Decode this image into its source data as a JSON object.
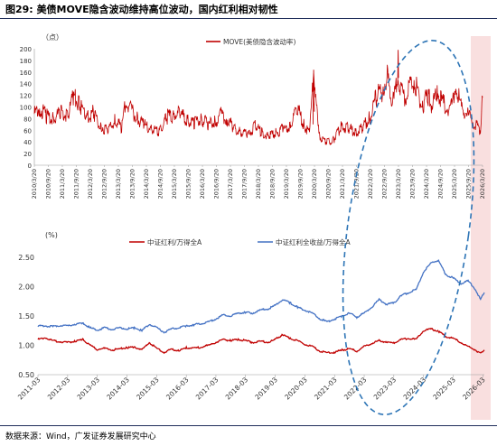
{
  "title": {
    "fig_no": "图29:",
    "text": "美债MOVE隐含波动维持高位波动，国内红利相对韧性"
  },
  "source": "数据来源：Wind，广发证券发展研究中心",
  "colors": {
    "red": "#c00000",
    "blue": "#4472c4",
    "ellipse": "#2e75b6",
    "shade": "#f8d7d7",
    "axis": "#999999",
    "rule": "#1f2d5a"
  },
  "chart_data": [
    {
      "type": "line",
      "unit_label": "（点）",
      "ylim": [
        0,
        200
      ],
      "yticks": [
        0,
        20,
        40,
        60,
        80,
        100,
        120,
        140,
        160,
        180,
        200
      ],
      "xlim": [
        "2010-03-20",
        "2026-03-20"
      ],
      "xticks": [
        "2010/3/20",
        "2010/9/20",
        "2011/3/20",
        "2011/9/20",
        "2012/3/20",
        "2012/9/20",
        "2013/3/20",
        "2013/9/20",
        "2014/3/20",
        "2014/9/20",
        "2015/3/20",
        "2015/9/20",
        "2016/3/20",
        "2016/9/20",
        "2017/3/20",
        "2017/9/20",
        "2018/3/20",
        "2018/9/20",
        "2019/3/20",
        "2019/9/20",
        "2020/3/20",
        "2020/9/20",
        "2021/3/20",
        "2021/9/20",
        "2022/3/20",
        "2022/9/20",
        "2023/3/20",
        "2023/9/20",
        "2024/3/20",
        "2024/9/20",
        "2025/3/20",
        "2025/9/20",
        "2026/3/20"
      ],
      "grid": false,
      "legend": "top-center",
      "series": [
        {
          "name": "MOVE(美债隐含波动率)",
          "color": "#c00000",
          "x": [
            "2010-03-20",
            "2010-06-01",
            "2010-09-01",
            "2010-12-01",
            "2011-03-01",
            "2011-06-01",
            "2011-08-15",
            "2011-11-01",
            "2012-02-01",
            "2012-05-01",
            "2012-08-01",
            "2012-11-01",
            "2013-02-01",
            "2013-05-01",
            "2013-06-25",
            "2013-09-01",
            "2013-12-01",
            "2014-03-01",
            "2014-06-01",
            "2014-09-01",
            "2014-12-01",
            "2015-03-01",
            "2015-06-01",
            "2015-09-01",
            "2015-12-01",
            "2016-03-01",
            "2016-06-01",
            "2016-09-01",
            "2016-11-20",
            "2017-02-01",
            "2017-05-01",
            "2017-08-01",
            "2017-11-01",
            "2018-02-10",
            "2018-05-01",
            "2018-08-01",
            "2018-11-01",
            "2019-02-01",
            "2019-05-01",
            "2019-08-15",
            "2019-11-01",
            "2020-01-15",
            "2020-03-09",
            "2020-03-25",
            "2020-06-01",
            "2020-09-01",
            "2020-12-01",
            "2021-03-01",
            "2021-06-01",
            "2021-09-01",
            "2021-12-01",
            "2022-03-01",
            "2022-06-15",
            "2022-09-01",
            "2022-10-20",
            "2022-12-01",
            "2023-01-15",
            "2023-03-15",
            "2023-05-01",
            "2023-07-01",
            "2023-08-15",
            "2023-10-20",
            "2023-12-01",
            "2024-02-01",
            "2024-04-15",
            "2024-06-01",
            "2024-08-05",
            "2024-10-01",
            "2024-12-01",
            "2025-02-01",
            "2025-04-08",
            "2025-06-01",
            "2025-08-01",
            "2025-10-01",
            "2025-12-01",
            "2026-01-20",
            "2026-02-20",
            "2026-03-10",
            "2026-03-20"
          ],
          "values": [
            88,
            98,
            84,
            78,
            92,
            85,
            118,
            102,
            85,
            90,
            68,
            58,
            76,
            65,
            112,
            95,
            78,
            70,
            62,
            58,
            82,
            85,
            90,
            76,
            72,
            80,
            70,
            74,
            88,
            80,
            64,
            58,
            52,
            68,
            56,
            50,
            56,
            62,
            66,
            98,
            70,
            55,
            164,
            118,
            48,
            40,
            45,
            66,
            64,
            56,
            64,
            80,
            124,
            130,
            158,
            120,
            110,
            150,
            122,
            118,
            132,
            150,
            118,
            106,
            118,
            102,
            126,
            112,
            98,
            96,
            138,
            104,
            92,
            84,
            72,
            66,
            60,
            98,
            116
          ]
        },
        {
          "name": "",
          "color": "#c00000",
          "x": [
            "2020-03-01",
            "2020-03-09",
            "2020-03-12",
            "2020-03-18",
            "2023-03-10",
            "2023-03-15",
            "2023-03-20"
          ],
          "values": [
            70,
            164,
            110,
            92,
            140,
            198,
            150
          ]
        }
      ]
    },
    {
      "type": "line",
      "unit_label": "(%)",
      "ylim": [
        0.5,
        2.5
      ],
      "yticks": [
        0.5,
        1.0,
        1.5,
        2.0,
        2.5
      ],
      "ytick_labels": [
        "0.50",
        "1.00",
        "1.50",
        "2.00",
        "2.50"
      ],
      "xlim": [
        "2011-03-01",
        "2026-03-20"
      ],
      "xticks": [
        "2011-03",
        "2012-03",
        "2013-03",
        "2014-03",
        "2015-03",
        "2016-03",
        "2017-03",
        "2018-03",
        "2019-03",
        "2020-03",
        "2021-03",
        "2022-03",
        "2023-03",
        "2024-03",
        "2025-03",
        "2026-03"
      ],
      "grid": false,
      "legend": "top-center",
      "series": [
        {
          "name": "中证红利/万得全A",
          "color": "#c00000",
          "x": [
            "2011-03-01",
            "2011-06-01",
            "2011-09-01",
            "2011-12-01",
            "2012-03-01",
            "2012-06-01",
            "2012-09-01",
            "2012-12-01",
            "2013-03-01",
            "2013-06-01",
            "2013-09-01",
            "2013-12-01",
            "2014-03-01",
            "2014-06-01",
            "2014-09-01",
            "2014-12-01",
            "2015-03-01",
            "2015-06-01",
            "2015-09-01",
            "2015-12-01",
            "2016-03-01",
            "2016-06-01",
            "2016-09-01",
            "2016-12-01",
            "2017-03-01",
            "2017-06-01",
            "2017-09-01",
            "2017-12-01",
            "2018-03-01",
            "2018-06-01",
            "2018-09-01",
            "2018-12-01",
            "2019-03-01",
            "2019-06-01",
            "2019-09-01",
            "2019-12-01",
            "2020-03-01",
            "2020-06-01",
            "2020-09-01",
            "2020-12-01",
            "2021-03-01",
            "2021-06-01",
            "2021-09-01",
            "2021-12-01",
            "2022-03-01",
            "2022-06-01",
            "2022-09-01",
            "2022-12-01",
            "2023-03-01",
            "2023-06-01",
            "2023-09-01",
            "2023-12-01",
            "2024-03-01",
            "2024-06-01",
            "2024-09-01",
            "2024-12-01",
            "2025-03-01",
            "2025-06-01",
            "2025-09-01",
            "2025-12-01",
            "2026-02-01",
            "2026-03-20"
          ],
          "values": [
            1.1,
            1.13,
            1.08,
            1.06,
            1.05,
            1.07,
            1.1,
            1.0,
            0.93,
            0.95,
            0.92,
            0.94,
            0.96,
            0.97,
            0.92,
            1.05,
            0.95,
            0.88,
            0.93,
            0.91,
            0.96,
            0.95,
            0.97,
            1.0,
            1.05,
            1.1,
            1.08,
            1.1,
            1.08,
            1.05,
            1.07,
            1.05,
            1.1,
            1.18,
            1.12,
            1.08,
            1.02,
            0.98,
            0.9,
            0.87,
            0.88,
            0.92,
            0.94,
            0.9,
            0.98,
            1.03,
            1.08,
            1.05,
            1.04,
            1.1,
            1.12,
            1.1,
            1.25,
            1.28,
            1.24,
            1.15,
            1.12,
            1.05,
            0.98,
            0.92,
            0.86,
            0.92
          ]
        },
        {
          "name": "中证红利全收益/万得全A",
          "color": "#4472c4",
          "x": [
            "2011-03-01",
            "2011-06-01",
            "2011-09-01",
            "2011-12-01",
            "2012-03-01",
            "2012-06-01",
            "2012-09-01",
            "2012-12-01",
            "2013-03-01",
            "2013-06-01",
            "2013-09-01",
            "2013-12-01",
            "2014-03-01",
            "2014-06-01",
            "2014-09-01",
            "2014-12-01",
            "2015-03-01",
            "2015-06-01",
            "2015-09-01",
            "2015-12-01",
            "2016-03-01",
            "2016-06-01",
            "2016-09-01",
            "2016-12-01",
            "2017-03-01",
            "2017-06-01",
            "2017-09-01",
            "2017-12-01",
            "2018-03-01",
            "2018-06-01",
            "2018-09-01",
            "2018-12-01",
            "2019-03-01",
            "2019-06-01",
            "2019-09-01",
            "2019-12-01",
            "2020-03-01",
            "2020-06-01",
            "2020-09-01",
            "2020-12-01",
            "2021-03-01",
            "2021-06-01",
            "2021-09-01",
            "2021-12-01",
            "2022-03-01",
            "2022-06-01",
            "2022-09-01",
            "2022-12-01",
            "2023-03-01",
            "2023-06-01",
            "2023-09-01",
            "2023-12-01",
            "2024-03-01",
            "2024-06-01",
            "2024-09-01",
            "2024-12-01",
            "2025-03-01",
            "2025-06-01",
            "2025-09-01",
            "2025-12-01",
            "2026-02-01",
            "2026-03-20"
          ],
          "values": [
            1.33,
            1.33,
            1.32,
            1.34,
            1.33,
            1.36,
            1.38,
            1.3,
            1.26,
            1.3,
            1.27,
            1.3,
            1.28,
            1.3,
            1.25,
            1.36,
            1.3,
            1.22,
            1.28,
            1.3,
            1.33,
            1.35,
            1.37,
            1.4,
            1.45,
            1.52,
            1.5,
            1.55,
            1.56,
            1.55,
            1.6,
            1.62,
            1.68,
            1.78,
            1.72,
            1.65,
            1.6,
            1.55,
            1.45,
            1.4,
            1.45,
            1.5,
            1.55,
            1.48,
            1.55,
            1.65,
            1.78,
            1.7,
            1.72,
            1.85,
            1.9,
            1.95,
            2.25,
            2.4,
            2.45,
            2.2,
            2.15,
            2.05,
            2.1,
            1.95,
            1.78,
            1.9
          ]
        }
      ]
    }
  ]
}
